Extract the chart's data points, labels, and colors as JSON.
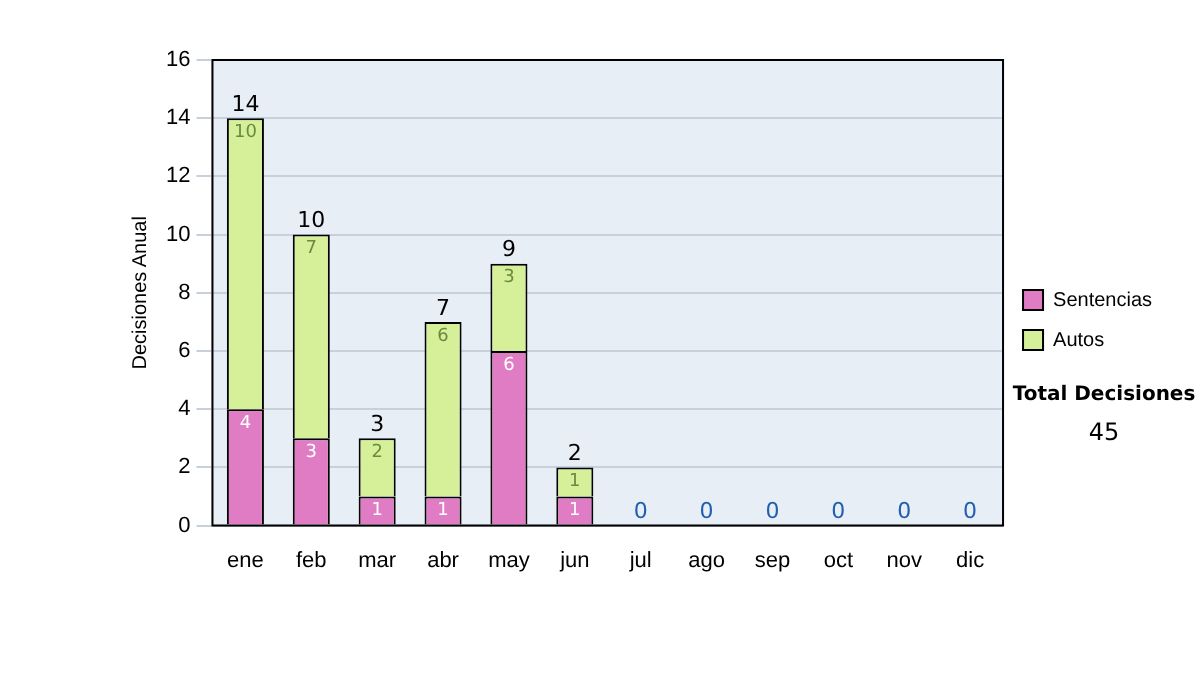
{
  "chart_data": {
    "type": "bar",
    "stacked": true,
    "ylabel": "Decisiones Anual",
    "categories": [
      "ene",
      "feb",
      "mar",
      "abr",
      "may",
      "jun",
      "jul",
      "ago",
      "sep",
      "oct",
      "nov",
      "dic"
    ],
    "series": [
      {
        "name": "Sentencias",
        "color": "#e07cc4",
        "values": [
          4,
          3,
          1,
          1,
          6,
          1,
          0,
          0,
          0,
          0,
          0,
          0
        ],
        "value_labels": [
          "4",
          "3",
          "1",
          "1",
          "6",
          "1",
          null,
          null,
          null,
          null,
          null,
          null
        ]
      },
      {
        "name": "Autos",
        "color": "#d6f09a",
        "values": [
          10,
          7,
          2,
          6,
          3,
          1,
          0,
          0,
          0,
          0,
          0,
          0
        ],
        "value_labels": [
          "10",
          "7",
          "2",
          "6",
          "3",
          "1",
          null,
          null,
          null,
          null,
          null,
          null
        ]
      }
    ],
    "totals": [
      "14",
      "10",
      "3",
      "7",
      "9",
      "2",
      "0",
      "0",
      "0",
      "0",
      "0",
      "0"
    ],
    "ylim": [
      0,
      16
    ],
    "yticks": [
      0,
      2,
      4,
      6,
      8,
      10,
      12,
      14,
      16
    ],
    "grid": "y",
    "legend": "right",
    "annotations": [
      "Total Decisiones",
      "45"
    ]
  }
}
